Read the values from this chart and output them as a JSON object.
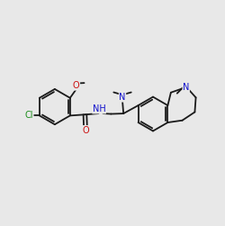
{
  "bg_color": "#e8e8e8",
  "bond_color": "#1a1a1a",
  "bond_lw": 1.3,
  "atom_colors": {
    "C": "#1a1a1a",
    "N": "#1010cc",
    "O": "#cc1010",
    "Cl": "#1a8c1a",
    "H": "#555555"
  },
  "font_size": 7.0,
  "font_size_small": 6.5
}
